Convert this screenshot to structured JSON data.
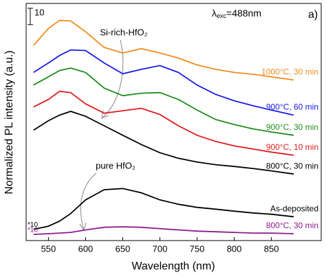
{
  "chart_data": {
    "type": "line",
    "xlabel": "Wavelength (nm)",
    "ylabel": "Normalized PL intensity (a.u.)",
    "panel_label": "a)",
    "excitation": {
      "symbol": "λ",
      "subscript": "exc",
      "text": "=488nm"
    },
    "annotations": [
      "Si-rich-HfO₂",
      "pure HfO₂"
    ],
    "scale_bar": {
      "value": 10,
      "label": "10"
    },
    "x": [
      530,
      550,
      565,
      580,
      600,
      625,
      650,
      675,
      700,
      725,
      750,
      775,
      800,
      825,
      850,
      880
    ],
    "xlim": [
      520,
      917
    ],
    "xticks": [
      550,
      600,
      650,
      700,
      750,
      800,
      850
    ],
    "ylim": [
      0,
      145
    ],
    "series": [
      {
        "name": "1000°C,  30 min",
        "color": "#f28c1e",
        "values": [
          119.3,
          129.7,
          134.6,
          134.3,
          127.7,
          118.1,
          114.7,
          117.4,
          114.7,
          111.6,
          107.4,
          104.7,
          102.8,
          101.7,
          100.1,
          98.2
        ]
      },
      {
        "name": "900°C, 60 min",
        "color": "#1a1ae6",
        "values": [
          102.8,
          108.6,
          113.2,
          116.6,
          116.2,
          108.6,
          102.0,
          104.7,
          107.0,
          102.8,
          95.1,
          89.4,
          85.5,
          82.5,
          79.8,
          76.7
        ]
      },
      {
        "name": "900°C, 30 min",
        "color": "#1e8c1e",
        "values": [
          95.1,
          100.1,
          104.0,
          105.5,
          102.8,
          93.2,
          88.6,
          90.1,
          90.5,
          86.3,
          79.8,
          74.0,
          71.0,
          68.3,
          66.4,
          64.4
        ]
      },
      {
        "name": "900°C, 10 min",
        "color": "#e01a1a",
        "values": [
          81.7,
          86.3,
          91.3,
          90.5,
          83.6,
          77.9,
          79.4,
          80.9,
          77.1,
          70.2,
          64.4,
          60.6,
          57.9,
          56.0,
          54.1,
          52.2
        ]
      },
      {
        "name": "800°C, 30 min",
        "color": "#000000",
        "values": [
          67.5,
          73.3,
          76.7,
          79.0,
          76.0,
          70.2,
          64.4,
          58.7,
          53.7,
          50.3,
          48.0,
          46.4,
          45.3,
          44.1,
          42.6,
          40.7
        ]
      },
      {
        "name": "As-deposited",
        "color": "#000000",
        "scale_note": "*10",
        "values": [
          6.9,
          8.8,
          11.9,
          16.5,
          24.9,
          31.1,
          31.8,
          29.2,
          24.9,
          22.2,
          20.3,
          19.2,
          18.0,
          16.9,
          16.1,
          14.6
        ]
      },
      {
        "name": "800°C, 30 min",
        "color": "#8b1a8b",
        "scale_note": "*10",
        "values": [
          3.8,
          4.2,
          4.6,
          5.0,
          6.5,
          8.1,
          8.4,
          8.1,
          7.3,
          6.5,
          5.8,
          5.4,
          5.0,
          4.6,
          4.6,
          4.2
        ]
      }
    ]
  }
}
